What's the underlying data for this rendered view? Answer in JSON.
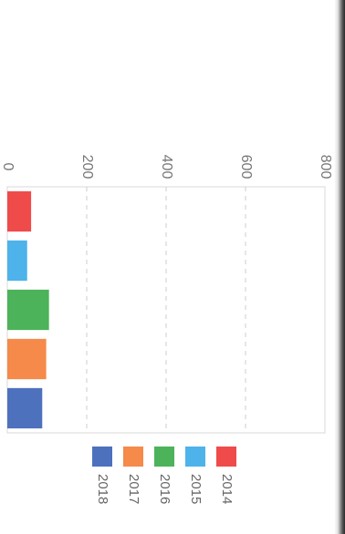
{
  "chart_data": {
    "type": "bar",
    "orientation": "horizontal",
    "display_rotation": 90,
    "categories": [
      "2014",
      "2015",
      "2016",
      "2017",
      "2018"
    ],
    "series": [
      {
        "values": [
          60,
          50,
          105,
          98,
          88
        ]
      }
    ],
    "colors": [
      "#f04b4b",
      "#4db3ea",
      "#4cb35a",
      "#f58a4a",
      "#4e71be"
    ],
    "xlim": [
      0,
      800
    ],
    "xticks": [
      "0",
      "200",
      "400",
      "600",
      "800",
      "1000"
    ],
    "grid": true,
    "grid_style": "dashed",
    "legend": {
      "position": "bottom",
      "items": [
        "2018",
        "2017",
        "2016",
        "2015",
        "2014"
      ]
    }
  }
}
